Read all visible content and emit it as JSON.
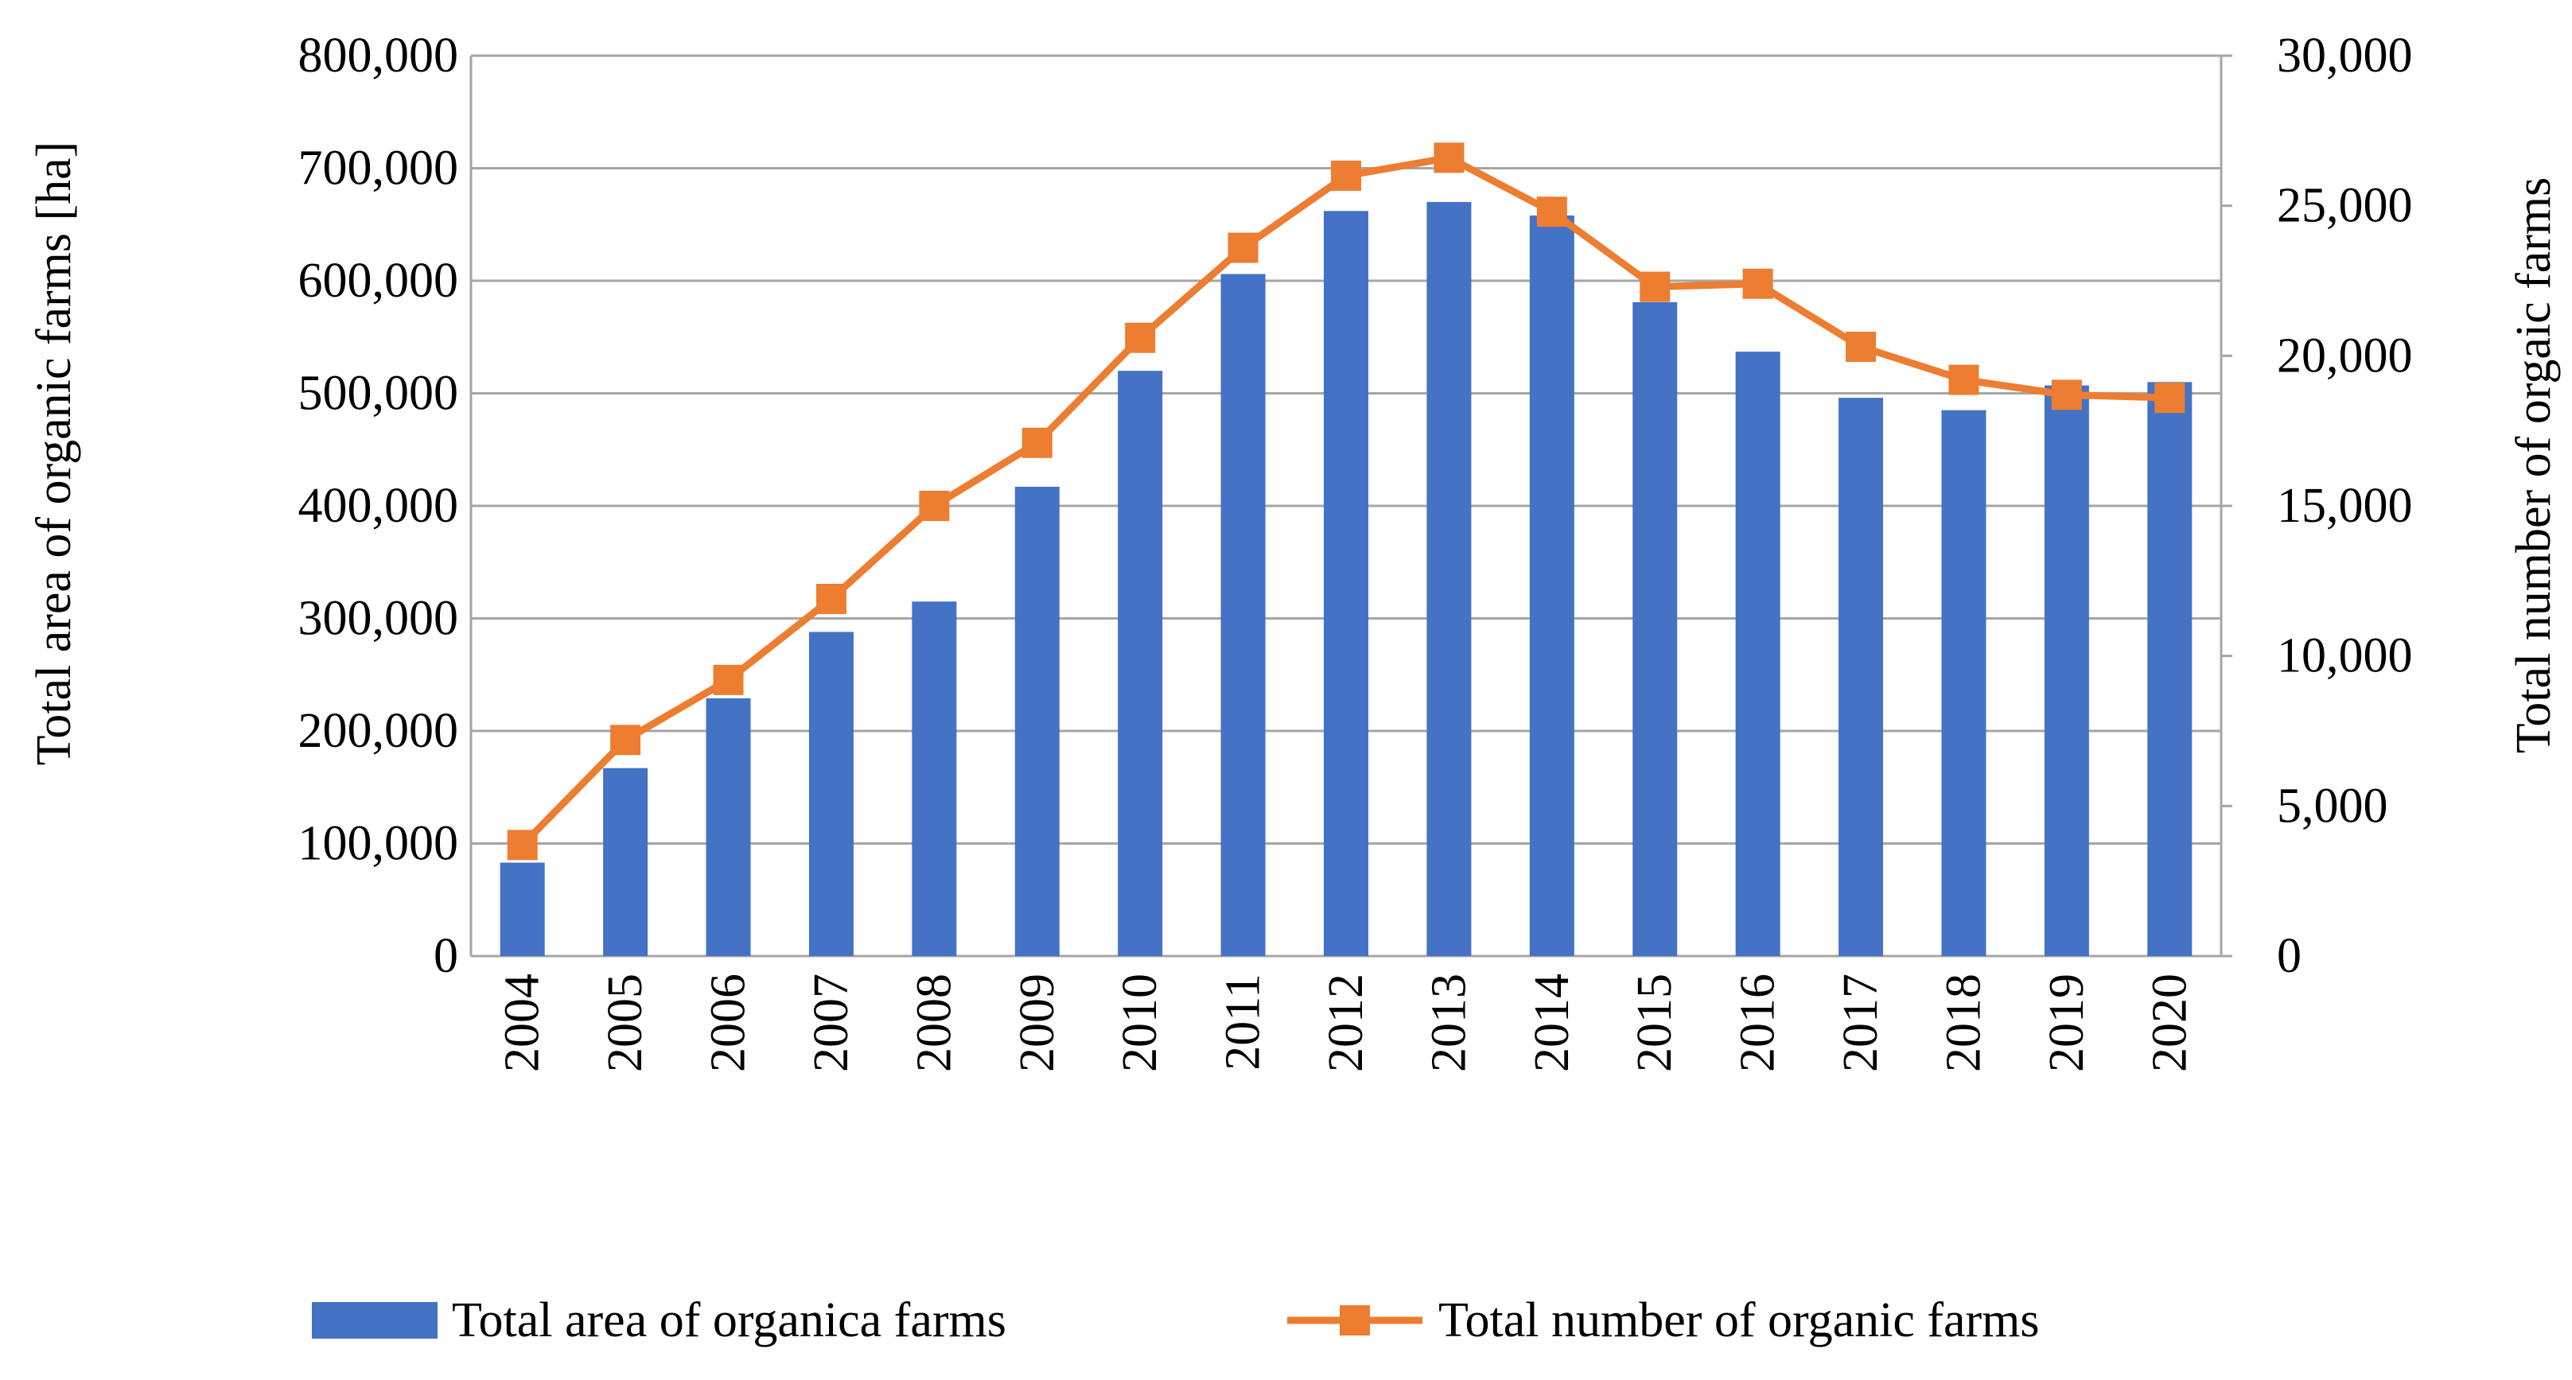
{
  "chart_data": {
    "type": "bar+line",
    "categories": [
      "2004",
      "2005",
      "2006",
      "2007",
      "2008",
      "2009",
      "2010",
      "2011",
      "2012",
      "2013",
      "2014",
      "2015",
      "2016",
      "2017",
      "2018",
      "2019",
      "2020"
    ],
    "series": [
      {
        "name": "Total area of organica farms",
        "kind": "bar",
        "axis": "left",
        "color": "#4472C4",
        "values": [
          83000,
          167000,
          229000,
          288000,
          315000,
          417000,
          520000,
          606000,
          662000,
          670000,
          658000,
          581000,
          537000,
          496000,
          485000,
          507000,
          510000
        ]
      },
      {
        "name": "Total number of organic farms",
        "kind": "line",
        "axis": "right",
        "color": "#ED7D31",
        "values": [
          3700,
          7200,
          9200,
          11900,
          15000,
          17100,
          20600,
          23600,
          26000,
          26600,
          24800,
          22300,
          22400,
          20300,
          19200,
          18700,
          18600
        ]
      }
    ],
    "left_axis": {
      "label": "Total  area of organic farms [ha]",
      "min": 0,
      "max": 800000,
      "ticks": [
        "0",
        "100,000",
        "200,000",
        "300,000",
        "400,000",
        "500,000",
        "600,000",
        "700,000",
        "800,000"
      ]
    },
    "right_axis": {
      "label": "Total number of orgaic farms",
      "min": 0,
      "max": 30000,
      "ticks": [
        "0",
        "5,000",
        "10,000",
        "15,000",
        "20,000",
        "25,000",
        "30,000"
      ]
    },
    "grid": true,
    "legend_position": "bottom"
  },
  "colors": {
    "grid": "#A6A6A6",
    "bar": "#4472C4",
    "line": "#ED7D31"
  }
}
